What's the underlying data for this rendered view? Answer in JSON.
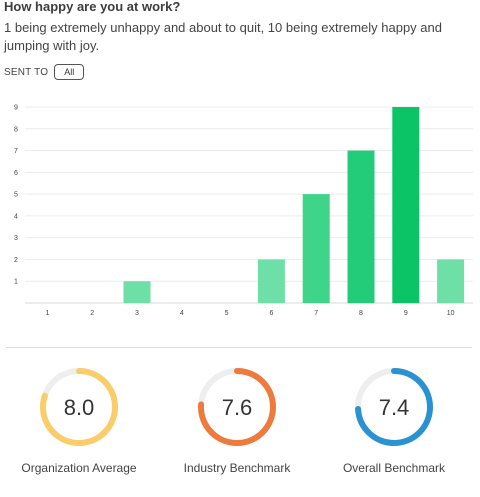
{
  "question": {
    "title": "How happy are you at work?",
    "description": "1 being extremely unhappy and about to quit, 10 being extremely happy and jumping with joy."
  },
  "filter": {
    "label": "SENT TO",
    "value": "All"
  },
  "chart_data": {
    "type": "bar",
    "categories": [
      "1",
      "2",
      "3",
      "4",
      "5",
      "6",
      "7",
      "8",
      "9",
      "10"
    ],
    "values": [
      0,
      0,
      1,
      0,
      0,
      2,
      5,
      7,
      9,
      2
    ],
    "ylim": [
      0,
      9
    ],
    "yticks": [
      "1",
      "2",
      "3",
      "4",
      "5",
      "6",
      "7",
      "8",
      "9"
    ],
    "grid": true,
    "colors": [
      "#6ee0a7",
      "#6ee0a7",
      "#6ee0a7",
      "#6ee0a7",
      "#6ee0a7",
      "#6ee0a7",
      "#3ed48a",
      "#22cc78",
      "#0bc466",
      "#6ee0a7"
    ]
  },
  "gauges": [
    {
      "value": "8.0",
      "label": "Organization Average",
      "fraction": 0.8,
      "color": "#f9cd6a"
    },
    {
      "value": "7.6",
      "label": "Industry Benchmark",
      "fraction": 0.76,
      "color": "#ee7a3e"
    },
    {
      "value": "7.4",
      "label": "Overall Benchmark",
      "fraction": 0.74,
      "color": "#2a92d0"
    }
  ]
}
